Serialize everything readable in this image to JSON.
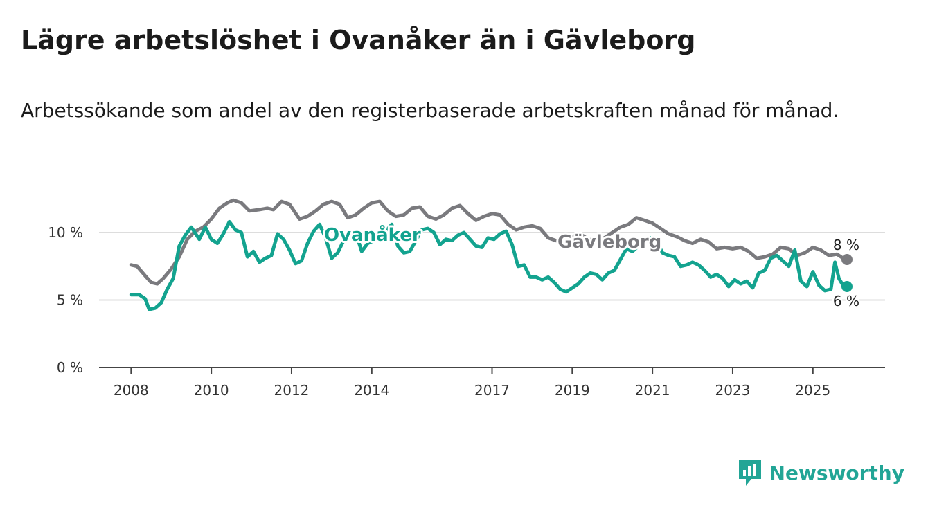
{
  "title": "Lägre arbetslöshet i Ovanåker än i Gävleborg",
  "subtitle": "Arbetssökande som andel av den registerbaserade arbetskraften månad för månad.",
  "brand": {
    "name": "Newsworthy",
    "icon": "bar-chart-logo-icon"
  },
  "colors": {
    "ovanaker": "#13a38f",
    "gavleborg": "#7a7a7e",
    "axis": "#444444",
    "grid": "#dddddd"
  },
  "chart_data": {
    "type": "line",
    "title": "Lägre arbetslöshet i Ovanåker än i Gävleborg",
    "xlabel": "",
    "ylabel": "",
    "xlim": [
      2007.2,
      2026.8
    ],
    "ylim": [
      0,
      14
    ],
    "y_ticks": [
      {
        "value": 0,
        "label": "0 %"
      },
      {
        "value": 5,
        "label": "5 %"
      },
      {
        "value": 10,
        "label": "10 %"
      }
    ],
    "x_ticks": [
      {
        "value": 2008,
        "label": "2008"
      },
      {
        "value": 2010,
        "label": "2010"
      },
      {
        "value": 2012,
        "label": "2012"
      },
      {
        "value": 2014,
        "label": "2014"
      },
      {
        "value": 2017,
        "label": "2017"
      },
      {
        "value": 2019,
        "label": "2019"
      },
      {
        "value": 2021,
        "label": "2021"
      },
      {
        "value": 2023,
        "label": "2023"
      },
      {
        "value": 2025,
        "label": "2025"
      }
    ],
    "series": [
      {
        "name": "Gävleborg",
        "label": "Gävleborg",
        "end_label": "8 %",
        "points": [
          [
            2008.0,
            7.6
          ],
          [
            2008.15,
            7.5
          ],
          [
            2008.35,
            6.8
          ],
          [
            2008.5,
            6.3
          ],
          [
            2008.65,
            6.2
          ],
          [
            2008.8,
            6.6
          ],
          [
            2009.0,
            7.3
          ],
          [
            2009.2,
            8.2
          ],
          [
            2009.4,
            9.5
          ],
          [
            2009.6,
            10.1
          ],
          [
            2009.8,
            10.4
          ],
          [
            2010.0,
            11.0
          ],
          [
            2010.2,
            11.8
          ],
          [
            2010.4,
            12.2
          ],
          [
            2010.55,
            12.4
          ],
          [
            2010.75,
            12.2
          ],
          [
            2010.95,
            11.6
          ],
          [
            2011.2,
            11.7
          ],
          [
            2011.4,
            11.8
          ],
          [
            2011.55,
            11.7
          ],
          [
            2011.75,
            12.3
          ],
          [
            2011.95,
            12.1
          ],
          [
            2012.2,
            11.0
          ],
          [
            2012.4,
            11.2
          ],
          [
            2012.6,
            11.6
          ],
          [
            2012.8,
            12.1
          ],
          [
            2013.0,
            12.3
          ],
          [
            2013.2,
            12.1
          ],
          [
            2013.4,
            11.1
          ],
          [
            2013.6,
            11.3
          ],
          [
            2013.8,
            11.8
          ],
          [
            2014.0,
            12.2
          ],
          [
            2014.2,
            12.3
          ],
          [
            2014.4,
            11.6
          ],
          [
            2014.6,
            11.2
          ],
          [
            2014.8,
            11.3
          ],
          [
            2015.0,
            11.8
          ],
          [
            2015.2,
            11.9
          ],
          [
            2015.4,
            11.2
          ],
          [
            2015.6,
            11.0
          ],
          [
            2015.8,
            11.3
          ],
          [
            2016.0,
            11.8
          ],
          [
            2016.2,
            12.0
          ],
          [
            2016.4,
            11.4
          ],
          [
            2016.6,
            10.9
          ],
          [
            2016.8,
            11.2
          ],
          [
            2017.0,
            11.4
          ],
          [
            2017.2,
            11.3
          ],
          [
            2017.4,
            10.6
          ],
          [
            2017.6,
            10.2
          ],
          [
            2017.8,
            10.4
          ],
          [
            2018.0,
            10.5
          ],
          [
            2018.2,
            10.3
          ],
          [
            2018.4,
            9.6
          ],
          [
            2018.6,
            9.4
          ],
          [
            2018.8,
            9.5
          ],
          [
            2019.0,
            9.7
          ],
          [
            2019.2,
            9.9
          ],
          [
            2019.4,
            9.5
          ],
          [
            2019.6,
            9.4
          ],
          [
            2019.8,
            9.6
          ],
          [
            2020.0,
            10.0
          ],
          [
            2020.2,
            10.4
          ],
          [
            2020.4,
            10.6
          ],
          [
            2020.6,
            11.1
          ],
          [
            2020.8,
            10.9
          ],
          [
            2021.0,
            10.7
          ],
          [
            2021.2,
            10.3
          ],
          [
            2021.4,
            9.9
          ],
          [
            2021.6,
            9.7
          ],
          [
            2021.8,
            9.4
          ],
          [
            2022.0,
            9.2
          ],
          [
            2022.2,
            9.5
          ],
          [
            2022.4,
            9.3
          ],
          [
            2022.6,
            8.8
          ],
          [
            2022.8,
            8.9
          ],
          [
            2023.0,
            8.8
          ],
          [
            2023.2,
            8.9
          ],
          [
            2023.4,
            8.6
          ],
          [
            2023.6,
            8.1
          ],
          [
            2023.8,
            8.2
          ],
          [
            2024.0,
            8.4
          ],
          [
            2024.2,
            8.9
          ],
          [
            2024.4,
            8.8
          ],
          [
            2024.6,
            8.3
          ],
          [
            2024.8,
            8.5
          ],
          [
            2025.0,
            8.9
          ],
          [
            2025.2,
            8.7
          ],
          [
            2025.4,
            8.3
          ],
          [
            2025.6,
            8.4
          ],
          [
            2025.75,
            8.1
          ],
          [
            2025.85,
            8.0
          ]
        ]
      },
      {
        "name": "Ovanåker",
        "label": "Ovanåker",
        "end_label": "6 %",
        "points": [
          [
            2008.0,
            5.4
          ],
          [
            2008.2,
            5.4
          ],
          [
            2008.35,
            5.1
          ],
          [
            2008.45,
            4.3
          ],
          [
            2008.6,
            4.4
          ],
          [
            2008.75,
            4.8
          ],
          [
            2008.9,
            5.8
          ],
          [
            2009.05,
            6.6
          ],
          [
            2009.2,
            9.0
          ],
          [
            2009.35,
            9.8
          ],
          [
            2009.5,
            10.4
          ],
          [
            2009.7,
            9.5
          ],
          [
            2009.85,
            10.4
          ],
          [
            2010.0,
            9.5
          ],
          [
            2010.15,
            9.2
          ],
          [
            2010.3,
            9.9
          ],
          [
            2010.45,
            10.8
          ],
          [
            2010.6,
            10.2
          ],
          [
            2010.75,
            10.0
          ],
          [
            2010.9,
            8.2
          ],
          [
            2011.05,
            8.6
          ],
          [
            2011.2,
            7.8
          ],
          [
            2011.35,
            8.1
          ],
          [
            2011.5,
            8.3
          ],
          [
            2011.65,
            9.9
          ],
          [
            2011.8,
            9.5
          ],
          [
            2011.95,
            8.7
          ],
          [
            2012.1,
            7.7
          ],
          [
            2012.25,
            7.9
          ],
          [
            2012.4,
            9.2
          ],
          [
            2012.55,
            10.1
          ],
          [
            2012.7,
            10.6
          ],
          [
            2012.85,
            9.6
          ],
          [
            2013.0,
            8.1
          ],
          [
            2013.15,
            8.5
          ],
          [
            2013.3,
            9.4
          ],
          [
            2013.45,
            9.9
          ],
          [
            2013.6,
            10.0
          ],
          [
            2013.75,
            8.6
          ],
          [
            2013.9,
            9.2
          ],
          [
            2014.05,
            9.4
          ],
          [
            2014.2,
            9.5
          ],
          [
            2014.35,
            10.1
          ],
          [
            2014.5,
            10.6
          ],
          [
            2014.65,
            9.0
          ],
          [
            2014.8,
            8.5
          ],
          [
            2014.95,
            8.6
          ],
          [
            2015.1,
            9.4
          ],
          [
            2015.25,
            10.2
          ],
          [
            2015.4,
            10.3
          ],
          [
            2015.55,
            10.0
          ],
          [
            2015.7,
            9.1
          ],
          [
            2015.85,
            9.5
          ],
          [
            2016.0,
            9.4
          ],
          [
            2016.15,
            9.8
          ],
          [
            2016.3,
            10.0
          ],
          [
            2016.45,
            9.5
          ],
          [
            2016.6,
            9.0
          ],
          [
            2016.75,
            8.9
          ],
          [
            2016.9,
            9.6
          ],
          [
            2017.05,
            9.5
          ],
          [
            2017.2,
            9.9
          ],
          [
            2017.35,
            10.1
          ],
          [
            2017.5,
            9.1
          ],
          [
            2017.65,
            7.5
          ],
          [
            2017.8,
            7.6
          ],
          [
            2017.95,
            6.7
          ],
          [
            2018.1,
            6.7
          ],
          [
            2018.25,
            6.5
          ],
          [
            2018.4,
            6.7
          ],
          [
            2018.55,
            6.3
          ],
          [
            2018.7,
            5.8
          ],
          [
            2018.85,
            5.6
          ],
          [
            2019.0,
            5.9
          ],
          [
            2019.15,
            6.2
          ],
          [
            2019.3,
            6.7
          ],
          [
            2019.45,
            7.0
          ],
          [
            2019.6,
            6.9
          ],
          [
            2019.75,
            6.5
          ],
          [
            2019.9,
            7.0
          ],
          [
            2020.05,
            7.2
          ],
          [
            2020.2,
            8.0
          ],
          [
            2020.35,
            8.8
          ],
          [
            2020.5,
            8.6
          ],
          [
            2020.65,
            9.0
          ],
          [
            2020.8,
            9.3
          ],
          [
            2020.95,
            9.6
          ],
          [
            2021.1,
            9.4
          ],
          [
            2021.25,
            8.5
          ],
          [
            2021.4,
            8.3
          ],
          [
            2021.55,
            8.2
          ],
          [
            2021.7,
            7.5
          ],
          [
            2021.85,
            7.6
          ],
          [
            2022.0,
            7.8
          ],
          [
            2022.15,
            7.6
          ],
          [
            2022.3,
            7.2
          ],
          [
            2022.45,
            6.7
          ],
          [
            2022.6,
            6.9
          ],
          [
            2022.75,
            6.6
          ],
          [
            2022.9,
            6.0
          ],
          [
            2023.05,
            6.5
          ],
          [
            2023.2,
            6.2
          ],
          [
            2023.35,
            6.4
          ],
          [
            2023.5,
            5.9
          ],
          [
            2023.65,
            7.0
          ],
          [
            2023.8,
            7.2
          ],
          [
            2023.95,
            8.1
          ],
          [
            2024.1,
            8.3
          ],
          [
            2024.25,
            7.9
          ],
          [
            2024.4,
            7.5
          ],
          [
            2024.55,
            8.7
          ],
          [
            2024.7,
            6.4
          ],
          [
            2024.85,
            6.0
          ],
          [
            2025.0,
            7.1
          ],
          [
            2025.15,
            6.1
          ],
          [
            2025.3,
            5.7
          ],
          [
            2025.45,
            5.8
          ],
          [
            2025.55,
            7.8
          ],
          [
            2025.65,
            6.6
          ],
          [
            2025.75,
            6.1
          ],
          [
            2025.85,
            6.0
          ]
        ]
      }
    ]
  }
}
